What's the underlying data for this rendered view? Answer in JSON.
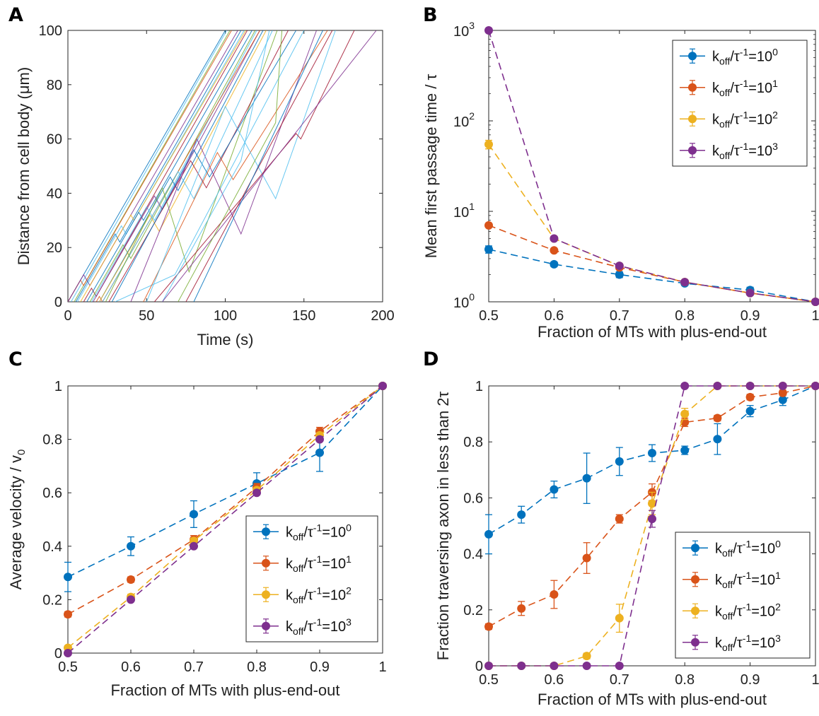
{
  "colors": {
    "blue": "#0072BD",
    "orange": "#D95319",
    "yellow": "#EDB120",
    "purple": "#7E2F8E"
  },
  "legend": [
    {
      "series": "10^0",
      "prefix": "k",
      "sub": "off",
      "mid": "/τ",
      "sup1": "-1",
      "eq": "=10",
      "sup2": "0"
    },
    {
      "series": "10^1",
      "prefix": "k",
      "sub": "off",
      "mid": "/τ",
      "sup1": "-1",
      "eq": "=10",
      "sup2": "1"
    },
    {
      "series": "10^2",
      "prefix": "k",
      "sub": "off",
      "mid": "/τ",
      "sup1": "-1",
      "eq": "=10",
      "sup2": "2"
    },
    {
      "series": "10^3",
      "prefix": "k",
      "sub": "off",
      "mid": "/τ",
      "sup1": "-1",
      "eq": "=10",
      "sup2": "3"
    }
  ],
  "chart_data": [
    {
      "panel": "A",
      "type": "line",
      "xlabel": "Time (s)",
      "ylabel": "Distance from cell body (μm)",
      "xlim": [
        0,
        200
      ],
      "ylim": [
        0,
        100
      ],
      "xticks": [
        0,
        50,
        100,
        150,
        200
      ],
      "yticks": [
        0,
        20,
        40,
        60,
        80,
        100
      ],
      "series": [
        {
          "color": "#0072BD",
          "points": [
            [
              0,
              0
            ],
            [
              100,
              100
            ]
          ]
        },
        {
          "color": "#4DBEEE",
          "points": [
            [
              2,
              0
            ],
            [
              101,
              100
            ]
          ]
        },
        {
          "color": "#77AC30",
          "points": [
            [
              4,
              0
            ],
            [
              103,
              100
            ]
          ]
        },
        {
          "color": "#D95319",
          "points": [
            [
              0,
              0
            ],
            [
              8,
              8
            ],
            [
              10,
              6
            ],
            [
              104,
              100
            ]
          ]
        },
        {
          "color": "#7E2F8E",
          "points": [
            [
              0,
              0
            ],
            [
              10,
              10
            ],
            [
              14,
              6
            ],
            [
              108,
              100
            ]
          ]
        },
        {
          "color": "#0072BD",
          "points": [
            [
              5,
              0
            ],
            [
              30,
              25
            ],
            [
              33,
              22
            ],
            [
              110,
              100
            ]
          ]
        },
        {
          "color": "#4DBEEE",
          "points": [
            [
              6,
              0
            ],
            [
              34,
              28
            ],
            [
              37,
              25
            ],
            [
              112,
              100
            ]
          ]
        },
        {
          "color": "#EDB120",
          "points": [
            [
              8,
              0
            ],
            [
              40,
              32
            ],
            [
              42,
              30
            ],
            [
              113,
              100
            ]
          ]
        },
        {
          "color": "#A2142F",
          "points": [
            [
              10,
              0
            ],
            [
              15,
              5
            ],
            [
              18,
              2
            ],
            [
              114,
              100
            ]
          ]
        },
        {
          "color": "#0072BD",
          "points": [
            [
              12,
              0
            ],
            [
              40,
              28
            ],
            [
              45,
              33
            ],
            [
              48,
              30
            ],
            [
              117,
              100
            ]
          ]
        },
        {
          "color": "#77AC30",
          "points": [
            [
              14,
              0
            ],
            [
              35,
              21
            ],
            [
              40,
              16
            ],
            [
              119,
              100
            ]
          ]
        },
        {
          "color": "#4DBEEE",
          "points": [
            [
              15,
              0
            ],
            [
              50,
              35
            ],
            [
              55,
              30
            ],
            [
              120,
              100
            ]
          ]
        },
        {
          "color": "#7E2F8E",
          "points": [
            [
              16,
              0
            ],
            [
              55,
              39
            ],
            [
              60,
              34
            ],
            [
              122,
              100
            ]
          ]
        },
        {
          "color": "#D95319",
          "points": [
            [
              18,
              0
            ],
            [
              20,
              2
            ],
            [
              22,
              0
            ],
            [
              122,
              100
            ]
          ]
        },
        {
          "color": "#0072BD",
          "points": [
            [
              20,
              0
            ],
            [
              65,
              46
            ],
            [
              70,
              41
            ],
            [
              124,
              100
            ]
          ]
        },
        {
          "color": "#EDB120",
          "points": [
            [
              20,
              0
            ],
            [
              52,
              32
            ],
            [
              58,
              26
            ],
            [
              126,
              100
            ]
          ]
        },
        {
          "color": "#4DBEEE",
          "points": [
            [
              22,
              0
            ],
            [
              70,
              48
            ],
            [
              80,
              38
            ],
            [
              130,
              100
            ]
          ]
        },
        {
          "color": "#77AC30",
          "points": [
            [
              24,
              0
            ],
            [
              60,
              42
            ],
            [
              77,
              11
            ],
            [
              133,
              100
            ]
          ]
        },
        {
          "color": "#A2142F",
          "points": [
            [
              26,
              0
            ],
            [
              78,
              52
            ],
            [
              88,
              42
            ],
            [
              140,
              100
            ]
          ]
        },
        {
          "color": "#0072BD",
          "points": [
            [
              28,
              0
            ],
            [
              80,
              56
            ],
            [
              90,
              46
            ],
            [
              145,
              100
            ]
          ]
        },
        {
          "color": "#4DBEEE",
          "points": [
            [
              30,
              0
            ],
            [
              68,
              10
            ],
            [
              150,
              100
            ]
          ]
        },
        {
          "color": "#7E2F8E",
          "points": [
            [
              40,
              0
            ],
            [
              82,
              60
            ],
            [
              110,
              25
            ],
            [
              158,
              100
            ]
          ]
        },
        {
          "color": "#D95319",
          "points": [
            [
              48,
              0
            ],
            [
              95,
              55
            ],
            [
              105,
              45
            ],
            [
              165,
              100
            ]
          ]
        },
        {
          "color": "#4DBEEE",
          "points": [
            [
              50,
              0
            ],
            [
              100,
              72
            ],
            [
              132,
              38
            ],
            [
              170,
              100
            ]
          ]
        },
        {
          "color": "#A2142F",
          "points": [
            [
              55,
              0
            ],
            [
              145,
              62
            ],
            [
              148,
              60
            ],
            [
              182,
              100
            ]
          ]
        },
        {
          "color": "#4DBEEE",
          "points": [
            [
              60,
              0
            ],
            [
              110,
              52
            ],
            [
              128,
              100
            ]
          ]
        },
        {
          "color": "#7E2F8E",
          "points": [
            [
              60,
              0
            ],
            [
              196,
              100
            ]
          ]
        },
        {
          "color": "#77AC30",
          "points": [
            [
              70,
              0
            ],
            [
              132,
              66
            ],
            [
              136,
              100
            ]
          ]
        },
        {
          "color": "#A2142F",
          "points": [
            [
              75,
              0
            ],
            [
              168,
              100
            ]
          ]
        },
        {
          "color": "#0072BD",
          "points": [
            [
              80,
              0
            ],
            [
              162,
              100
            ]
          ]
        }
      ]
    },
    {
      "panel": "B",
      "type": "line",
      "xlabel": "Fraction of MTs with plus-end-out",
      "ylabel": "Mean first passage time / τ",
      "xlim": [
        0.5,
        1.0
      ],
      "ylim": [
        1,
        1000
      ],
      "yscale": "log",
      "xticks": [
        "0.5",
        "0.6",
        "0.7",
        "0.8",
        "0.9",
        "1"
      ],
      "yticks": [
        {
          "base": "10",
          "exp": "0"
        },
        {
          "base": "10",
          "exp": "1"
        },
        {
          "base": "10",
          "exp": "2"
        },
        {
          "base": "10",
          "exp": "3"
        }
      ],
      "legend_position": "top-right",
      "x": [
        0.5,
        0.6,
        0.7,
        0.8,
        0.9,
        1.0
      ],
      "series": [
        {
          "name": "10^0",
          "color": "#0072BD",
          "values": [
            3.8,
            2.6,
            2.0,
            1.6,
            1.35,
            1.0
          ],
          "err": [
            0.35,
            0.15,
            0.15,
            0.08,
            0.1,
            0.0
          ]
        },
        {
          "name": "10^1",
          "color": "#D95319",
          "values": [
            7.0,
            3.7,
            2.4,
            1.65,
            1.25,
            1.0
          ],
          "err": [
            0.3,
            0.15,
            0.1,
            0.08,
            0.05,
            0.0
          ]
        },
        {
          "name": "10^2",
          "color": "#EDB120",
          "values": [
            55,
            5.0,
            2.5,
            1.65,
            1.25,
            1.0
          ],
          "err": [
            6,
            0.2,
            0.1,
            0.05,
            0.05,
            0.0
          ]
        },
        {
          "name": "10^3",
          "color": "#7E2F8E",
          "values": [
            1000,
            5.0,
            2.5,
            1.65,
            1.25,
            1.0
          ],
          "err": [
            0,
            0.2,
            0.1,
            0.05,
            0.05,
            0.0
          ]
        }
      ]
    },
    {
      "panel": "C",
      "type": "line",
      "xlabel": "Fraction of MTs with plus-end-out",
      "ylabel": "Average velocity / v",
      "ylabel_sub": "0",
      "xlim": [
        0.5,
        1.0
      ],
      "ylim": [
        0,
        1
      ],
      "xticks": [
        "0.5",
        "0.6",
        "0.7",
        "0.8",
        "0.9",
        "1"
      ],
      "yticks": [
        "0",
        "0.2",
        "0.4",
        "0.6",
        "0.8",
        "1"
      ],
      "legend_position": "bottom-right",
      "x": [
        0.5,
        0.6,
        0.7,
        0.8,
        0.9,
        1.0
      ],
      "series": [
        {
          "name": "10^0",
          "color": "#0072BD",
          "values": [
            0.285,
            0.4,
            0.52,
            0.635,
            0.75,
            1.0
          ],
          "err": [
            0.055,
            0.035,
            0.05,
            0.04,
            0.07,
            0.0
          ]
        },
        {
          "name": "10^1",
          "color": "#D95319",
          "values": [
            0.145,
            0.275,
            0.425,
            0.62,
            0.83,
            1.0
          ],
          "err": [
            0.01,
            0.01,
            0.015,
            0.015,
            0.015,
            0.0
          ]
        },
        {
          "name": "10^2",
          "color": "#EDB120",
          "values": [
            0.02,
            0.21,
            0.42,
            0.61,
            0.815,
            1.0
          ],
          "err": [
            0.005,
            0.01,
            0.01,
            0.01,
            0.01,
            0.0
          ]
        },
        {
          "name": "10^3",
          "color": "#7E2F8E",
          "values": [
            0.0,
            0.2,
            0.4,
            0.6,
            0.8,
            1.0
          ],
          "err": [
            0.005,
            0.005,
            0.005,
            0.005,
            0.005,
            0.0
          ]
        }
      ]
    },
    {
      "panel": "D",
      "type": "line",
      "xlabel": "Fraction of MTs with plus-end-out",
      "ylabel": "Fraction traversing axon in less than 2τ",
      "xlim": [
        0.5,
        1.0
      ],
      "ylim": [
        0,
        1
      ],
      "xticks": [
        "0.5",
        "0.6",
        "0.7",
        "0.8",
        "0.9",
        "1"
      ],
      "yticks": [
        "0",
        "0.2",
        "0.4",
        "0.6",
        "0.8",
        "1"
      ],
      "legend_position": "bottom-right",
      "x": [
        0.5,
        0.55,
        0.6,
        0.65,
        0.7,
        0.75,
        0.8,
        0.85,
        0.9,
        0.95,
        1.0
      ],
      "series": [
        {
          "name": "10^0",
          "color": "#0072BD",
          "values": [
            0.47,
            0.54,
            0.63,
            0.67,
            0.73,
            0.76,
            0.77,
            0.81,
            0.91,
            0.95,
            1.0
          ],
          "err": [
            0.07,
            0.03,
            0.03,
            0.09,
            0.05,
            0.03,
            0.015,
            0.055,
            0.02,
            0.02,
            0.0
          ]
        },
        {
          "name": "10^1",
          "color": "#D95319",
          "values": [
            0.14,
            0.205,
            0.255,
            0.385,
            0.525,
            0.62,
            0.87,
            0.885,
            0.96,
            0.975,
            1.0
          ],
          "err": [
            0.01,
            0.025,
            0.05,
            0.055,
            0.015,
            0.03,
            0.015,
            0.01,
            0.01,
            0.01,
            0.0
          ]
        },
        {
          "name": "10^2",
          "color": "#EDB120",
          "values": [
            0.0,
            0.0,
            0.0,
            0.035,
            0.17,
            0.58,
            0.9,
            1.0,
            1.0,
            1.0,
            1.0
          ],
          "err": [
            0.0,
            0.0,
            0.0,
            0.01,
            0.05,
            0.04,
            0.02,
            0.0,
            0.0,
            0.0,
            0.0
          ]
        },
        {
          "name": "10^3",
          "color": "#7E2F8E",
          "values": [
            0.0,
            0.0,
            0.0,
            0.0,
            0.0,
            0.525,
            1.0,
            1.0,
            1.0,
            1.0,
            1.0
          ],
          "err": [
            0.0,
            0.0,
            0.0,
            0.0,
            0.0,
            0.03,
            0.0,
            0.0,
            0.0,
            0.0,
            0.0
          ]
        }
      ]
    }
  ],
  "panels": {
    "A": {
      "letter": "A"
    },
    "B": {
      "letter": "B"
    },
    "C": {
      "letter": "C"
    },
    "D": {
      "letter": "D"
    }
  }
}
